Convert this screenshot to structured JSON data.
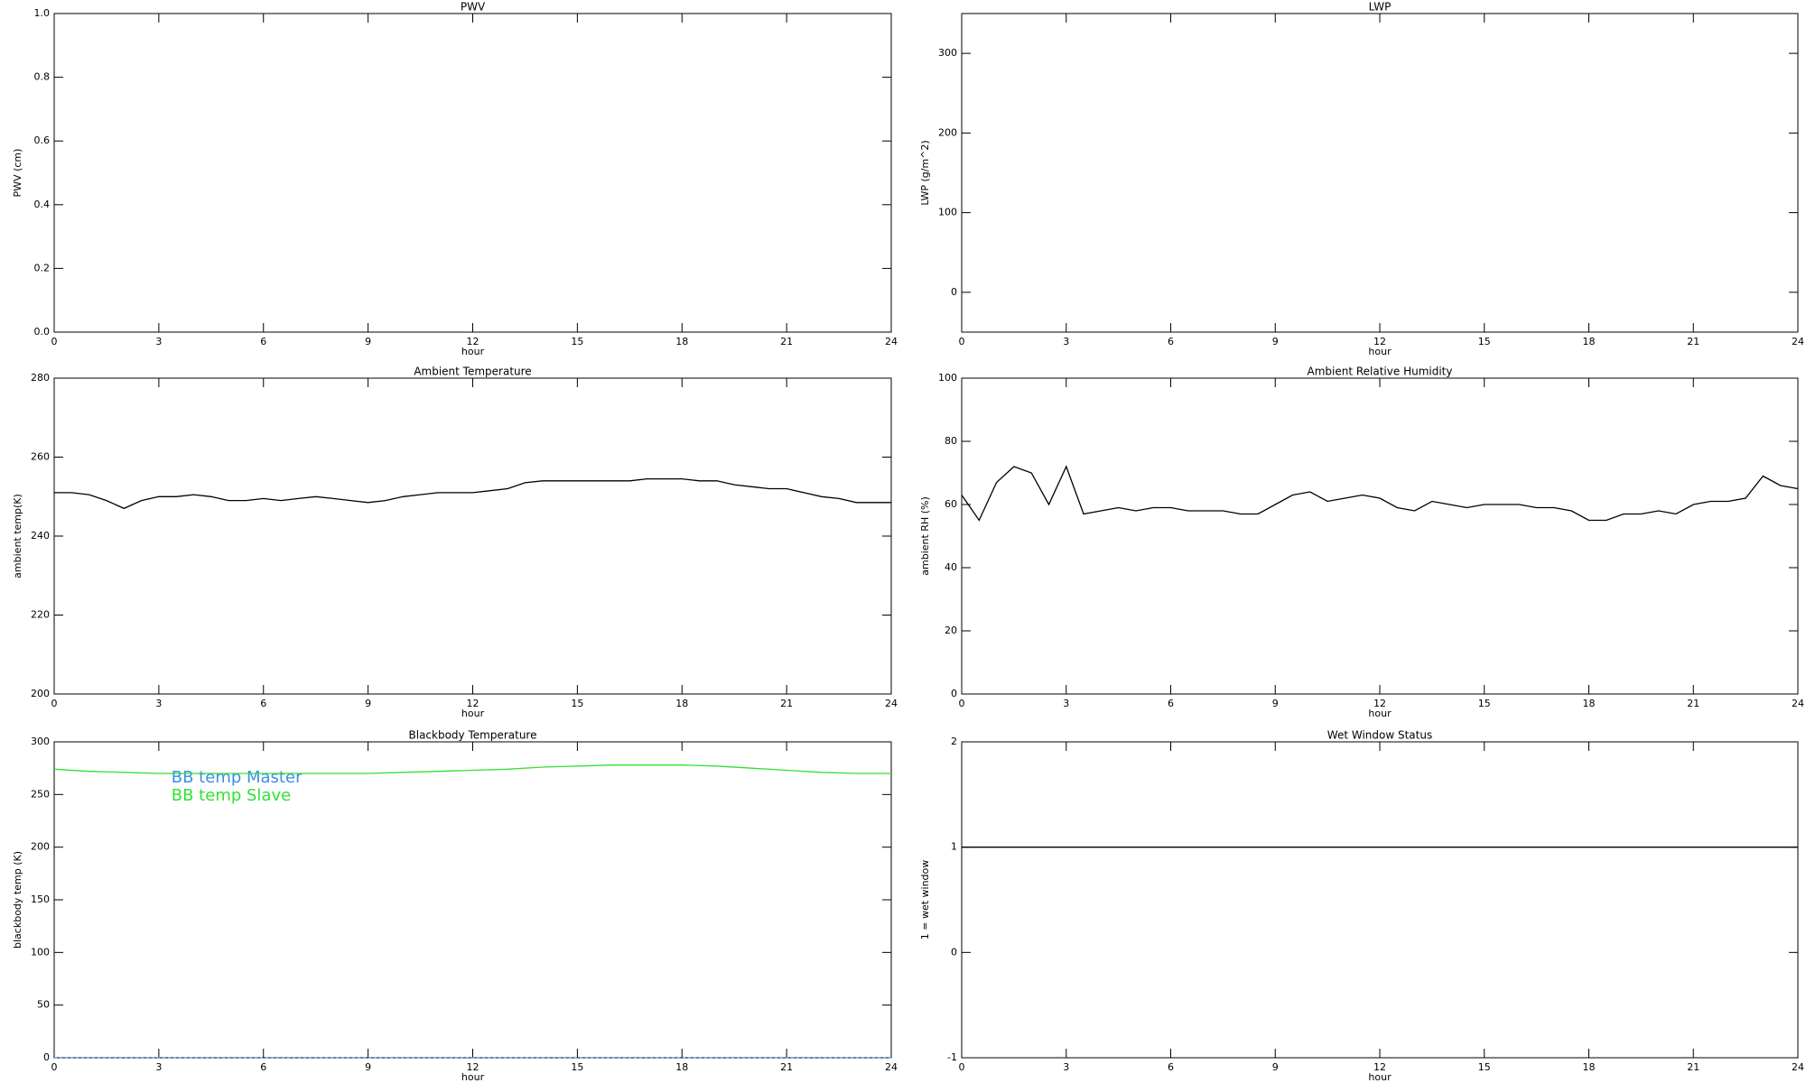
{
  "chart_data": [
    {
      "type": "line",
      "title": "PWV",
      "xlabel": "hour",
      "ylabel": "PWV (cm)",
      "xlim": [
        0,
        24
      ],
      "xticks": [
        0,
        3,
        6,
        9,
        12,
        15,
        18,
        21,
        24
      ],
      "ylim": [
        0,
        1
      ],
      "yticks": [
        {
          "value": 0,
          "label": "0.0"
        },
        0.2,
        0.4,
        0.6,
        0.8,
        {
          "value": 1,
          "label": "1.0"
        }
      ],
      "series": []
    },
    {
      "type": "line",
      "title": "LWP",
      "xlabel": "hour",
      "ylabel": "LWP (g/m^2)",
      "xlim": [
        0,
        24
      ],
      "xticks": [
        0,
        3,
        6,
        9,
        12,
        15,
        18,
        21,
        24
      ],
      "ylim": [
        -50,
        350
      ],
      "yticks": [
        0,
        100,
        200,
        300
      ],
      "series": []
    },
    {
      "type": "line",
      "title": "Ambient Temperature",
      "xlabel": "hour",
      "ylabel": "ambient temp(K)",
      "xlim": [
        0,
        24
      ],
      "xticks": [
        0,
        3,
        6,
        9,
        12,
        15,
        18,
        21,
        24
      ],
      "ylim": [
        200,
        280
      ],
      "yticks": [
        200,
        220,
        240,
        260,
        280
      ],
      "x": [
        0,
        0.5,
        1,
        1.5,
        2,
        2.5,
        3,
        3.5,
        4,
        4.5,
        5,
        5.5,
        6,
        6.5,
        7,
        7.5,
        8,
        8.5,
        9,
        9.5,
        10,
        10.5,
        11,
        11.5,
        12,
        12.5,
        13,
        13.5,
        14,
        14.5,
        15,
        15.5,
        16,
        16.5,
        17,
        17.5,
        18,
        18.5,
        19,
        19.5,
        20,
        20.5,
        21,
        21.5,
        22,
        22.5,
        23,
        23.5,
        24
      ],
      "series": [
        {
          "color": "#000000",
          "values": [
            251,
            251,
            250.5,
            249,
            247,
            249,
            250,
            250,
            250.5,
            250,
            249,
            249,
            249.5,
            249,
            249.5,
            250,
            249.5,
            249,
            248.5,
            249,
            250,
            250.5,
            251,
            251,
            251,
            251.5,
            252,
            253.5,
            254,
            254,
            254,
            254,
            254,
            254,
            254.5,
            254.5,
            254.5,
            254,
            254,
            253,
            252.5,
            252,
            252,
            251,
            250,
            249.5,
            248.5,
            248.5,
            248.5
          ]
        }
      ]
    },
    {
      "type": "line",
      "title": "Ambient Relative Humidity",
      "xlabel": "hour",
      "ylabel": "ambient RH (%)",
      "xlim": [
        0,
        24
      ],
      "xticks": [
        0,
        3,
        6,
        9,
        12,
        15,
        18,
        21,
        24
      ],
      "ylim": [
        0,
        100
      ],
      "yticks": [
        0,
        20,
        40,
        60,
        80,
        100
      ],
      "x": [
        0,
        0.5,
        1,
        1.5,
        2,
        2.5,
        3,
        3.5,
        4,
        4.5,
        5,
        5.5,
        6,
        6.5,
        7,
        7.5,
        8,
        8.5,
        9,
        9.5,
        10,
        10.5,
        11,
        11.5,
        12,
        12.5,
        13,
        13.5,
        14,
        14.5,
        15,
        15.5,
        16,
        16.5,
        17,
        17.5,
        18,
        18.5,
        19,
        19.5,
        20,
        20.5,
        21,
        21.5,
        22,
        22.5,
        23,
        23.5,
        24
      ],
      "series": [
        {
          "color": "#000000",
          "values": [
            63,
            55,
            67,
            72,
            70,
            60,
            72,
            57,
            58,
            59,
            58,
            59,
            59,
            58,
            58,
            58,
            57,
            57,
            60,
            63,
            64,
            61,
            62,
            63,
            62,
            59,
            58,
            61,
            60,
            59,
            60,
            60,
            60,
            59,
            59,
            58,
            55,
            55,
            57,
            57,
            58,
            57,
            60,
            61,
            61,
            62,
            69,
            66,
            65
          ]
        }
      ]
    },
    {
      "type": "line",
      "title": "Blackbody Temperature",
      "xlabel": "hour",
      "ylabel": "blackbody temp (K)",
      "xlim": [
        0,
        24
      ],
      "xticks": [
        0,
        3,
        6,
        9,
        12,
        15,
        18,
        21,
        24
      ],
      "ylim": [
        0,
        300
      ],
      "yticks": [
        0,
        50,
        100,
        150,
        200,
        250,
        300
      ],
      "legend": "upper left",
      "x": [
        0,
        1,
        2,
        3,
        4,
        5,
        6,
        7,
        8,
        9,
        10,
        11,
        12,
        13,
        14,
        15,
        16,
        17,
        18,
        19,
        20,
        21,
        22,
        23,
        24
      ],
      "series": [
        {
          "name": "BB temp Master",
          "color": "#3a8ee6",
          "values": [
            0,
            0,
            0,
            0,
            0,
            0,
            0,
            0,
            0,
            0,
            0,
            0,
            0,
            0,
            0,
            0,
            0,
            0,
            0,
            0,
            0,
            0,
            0,
            0,
            0
          ]
        },
        {
          "name": "BB temp Slave",
          "color": "#33e033",
          "values": [
            274,
            272,
            271,
            270,
            270,
            270,
            270,
            270,
            270,
            270,
            271,
            272,
            273,
            274,
            276,
            277,
            278,
            278,
            278,
            277,
            275,
            273,
            271,
            270,
            270
          ]
        }
      ]
    },
    {
      "type": "line",
      "title": "Wet Window Status",
      "xlabel": "hour",
      "ylabel": "1 = wet window",
      "xlim": [
        0,
        24
      ],
      "xticks": [
        0,
        3,
        6,
        9,
        12,
        15,
        18,
        21,
        24
      ],
      "ylim": [
        -1,
        2
      ],
      "yticks": [
        -1,
        0,
        1,
        2
      ],
      "x": [
        0,
        24
      ],
      "series": [
        {
          "color": "#000000",
          "values": [
            1,
            1
          ]
        }
      ]
    }
  ]
}
